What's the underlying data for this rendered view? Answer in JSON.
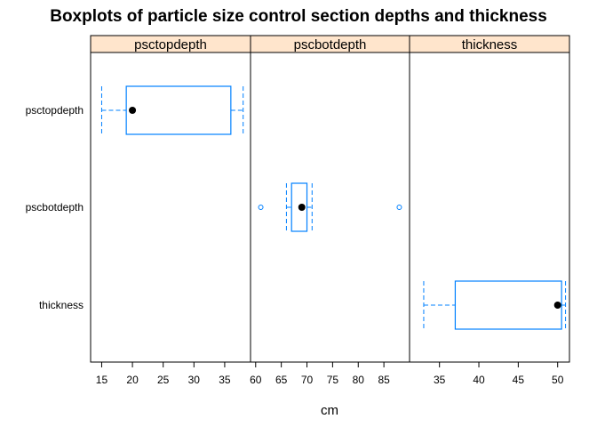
{
  "chart_data": {
    "type": "boxplot",
    "title": "Boxplots of particle size control section depths and thickness",
    "xlabel": "cm",
    "ylabel": "",
    "categories": [
      "psctopdepth",
      "pscbotdepth",
      "thickness"
    ],
    "panels": [
      {
        "name": "psctopdepth",
        "xlim": [
          13.2,
          39.2
        ],
        "ticks": [
          15,
          20,
          25,
          30,
          35
        ],
        "category": "psctopdepth",
        "box": {
          "whisker_low": 15,
          "q1": 19,
          "median": 20,
          "q3": 36,
          "whisker_high": 38
        },
        "outliers": []
      },
      {
        "name": "pscbotdepth",
        "xlim": [
          59.0,
          90.0
        ],
        "ticks": [
          60,
          65,
          70,
          75,
          80,
          85
        ],
        "category": "pscbotdepth",
        "box": {
          "whisker_low": 66,
          "q1": 67,
          "median": 69,
          "q3": 70,
          "whisker_high": 71
        },
        "outliers": [
          61,
          88
        ]
      },
      {
        "name": "thickness",
        "xlim": [
          31.2,
          51.5
        ],
        "ticks": [
          35,
          40,
          45,
          50
        ],
        "category": "thickness",
        "box": {
          "whisker_low": 33,
          "q1": 37,
          "median": 50,
          "q3": 50.5,
          "whisker_high": 51
        },
        "outliers": []
      }
    ],
    "colors": {
      "box": "#0080ff",
      "strip": "#ffe5cc",
      "median": "#000000"
    }
  }
}
